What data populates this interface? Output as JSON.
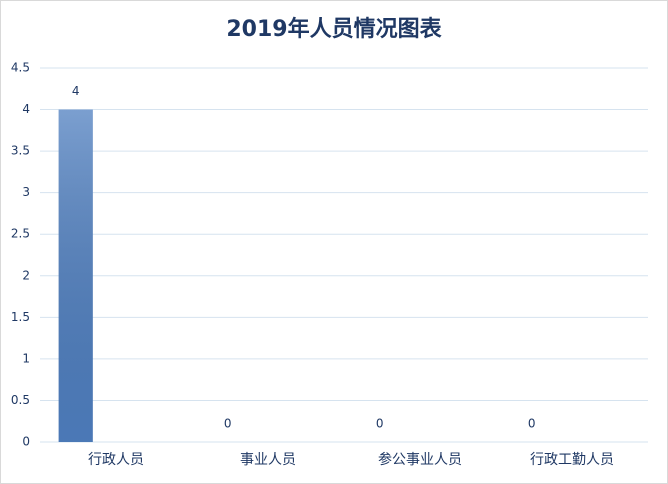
{
  "chart_data": {
    "type": "bar",
    "title": "2019年人员情况图表",
    "categories": [
      "行政人员",
      "事业人员",
      "参公事业人员",
      "行政工勤人员"
    ],
    "values": [
      4,
      0,
      0,
      0
    ],
    "color": "#4f7fc0",
    "ylim": [
      0,
      4.5
    ],
    "yticks": [
      0,
      0.5,
      1,
      1.5,
      2,
      2.5,
      3,
      3.5,
      4,
      4.5
    ],
    "grid": true
  }
}
